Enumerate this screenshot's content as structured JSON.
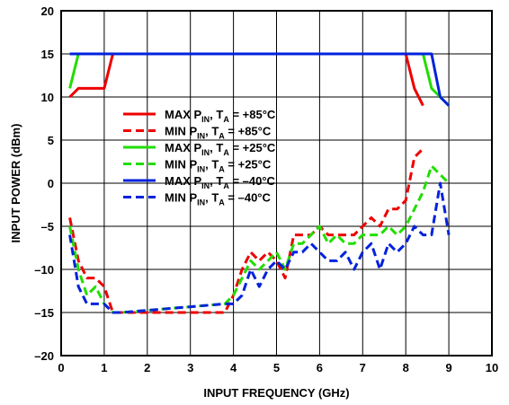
{
  "chart_data": {
    "type": "line",
    "xlabel": "INPUT FREQUENCY (GHz)",
    "ylabel": "INPUT POWER (dBm)",
    "xlim": [
      0,
      10
    ],
    "ylim": [
      -20,
      20
    ],
    "x_ticks": [
      "0",
      "1",
      "2",
      "3",
      "4",
      "5",
      "6",
      "7",
      "8",
      "9",
      "10"
    ],
    "y_ticks": [
      "20",
      "15",
      "10",
      "5",
      "0",
      "–5",
      "–10",
      "–15",
      "–20"
    ],
    "grid": true,
    "legend_position": "center-left",
    "series": [
      {
        "legend": {
          "pre": "MAX P",
          "sub1": "IN",
          "mid": ", T",
          "sub2": "A",
          "post": " = +85°C"
        },
        "color": "#ee0000",
        "dash": "solid",
        "x": [
          0.2,
          0.4,
          1.0,
          1.2,
          8.0,
          8.2,
          8.4
        ],
        "y": [
          10,
          11,
          11,
          15,
          15,
          11,
          9
        ]
      },
      {
        "legend": {
          "pre": "MIN P",
          "sub1": "IN",
          "mid": ", T",
          "sub2": "A",
          "post": " = +85°C"
        },
        "color": "#ee0000",
        "dash": "dashed",
        "x": [
          0.2,
          0.4,
          0.6,
          0.8,
          1.0,
          1.2,
          1.4,
          3.8,
          4.0,
          4.2,
          4.4,
          4.6,
          4.8,
          5.0,
          5.2,
          5.4,
          5.6,
          5.8,
          6.0,
          6.2,
          6.4,
          6.6,
          6.8,
          7.0,
          7.2,
          7.4,
          7.6,
          7.8,
          8.0,
          8.2,
          8.4
        ],
        "y": [
          -4,
          -9,
          -11,
          -11,
          -12,
          -15,
          -15,
          -15,
          -13,
          -10,
          -8,
          -9,
          -8,
          -9,
          -11,
          -6,
          -6,
          -6,
          -5,
          -6,
          -6,
          -6,
          -6,
          -5,
          -4,
          -5,
          -3,
          -3,
          -2,
          3,
          4
        ]
      },
      {
        "legend": {
          "pre": "MAX P",
          "sub1": "IN",
          "mid": ", T",
          "sub2": "A",
          "post": " = +25°C"
        },
        "color": "#22dd00",
        "dash": "solid",
        "x": [
          0.2,
          0.4,
          1.2,
          8.4,
          8.6,
          8.8,
          9.0
        ],
        "y": [
          11,
          15,
          15,
          15,
          11,
          10,
          9
        ]
      },
      {
        "legend": {
          "pre": "MIN P",
          "sub1": "IN",
          "mid": ", T",
          "sub2": "A",
          "post": " = +25°C"
        },
        "color": "#22dd00",
        "dash": "dashed",
        "x": [
          0.2,
          0.4,
          0.6,
          0.8,
          1.0,
          1.2,
          1.4,
          3.8,
          4.0,
          4.2,
          4.4,
          4.6,
          4.8,
          5.0,
          5.2,
          5.4,
          5.6,
          5.8,
          6.0,
          6.2,
          6.4,
          6.6,
          6.8,
          7.0,
          7.2,
          7.4,
          7.6,
          7.8,
          8.0,
          8.2,
          8.4,
          8.6,
          8.8,
          9.0
        ],
        "y": [
          -5,
          -10,
          -13,
          -12,
          -14,
          -15,
          -15,
          -14,
          -13,
          -11,
          -9,
          -10,
          -9,
          -8,
          -10,
          -7,
          -7,
          -6,
          -5,
          -7,
          -6,
          -7,
          -7,
          -6,
          -6,
          -6,
          -5,
          -6,
          -5,
          -3,
          -1,
          2,
          1,
          0
        ]
      },
      {
        "legend": {
          "pre": "MAX P",
          "sub1": "IN",
          "mid": ", T",
          "sub2": "A",
          "post": " = –40°C"
        },
        "color": "#0022dd",
        "dash": "solid",
        "x": [
          0.2,
          0.4,
          8.6,
          8.8,
          9.0
        ],
        "y": [
          15,
          15,
          15,
          10,
          9
        ]
      },
      {
        "legend": {
          "pre": "MIN P",
          "sub1": "IN",
          "mid": ", T",
          "sub2": "A",
          "post": " = –40°C"
        },
        "color": "#0022dd",
        "dash": "dashed",
        "x": [
          0.2,
          0.4,
          0.6,
          0.8,
          1.0,
          1.2,
          1.4,
          3.8,
          4.0,
          4.2,
          4.4,
          4.6,
          4.8,
          5.0,
          5.2,
          5.4,
          5.6,
          5.8,
          6.0,
          6.2,
          6.4,
          6.6,
          6.8,
          7.0,
          7.2,
          7.4,
          7.6,
          7.8,
          8.0,
          8.2,
          8.4,
          8.6,
          8.8,
          9.0
        ],
        "y": [
          -6,
          -12,
          -14,
          -14,
          -14,
          -15,
          -15,
          -14,
          -14,
          -13,
          -10,
          -12,
          -10,
          -9,
          -10,
          -8,
          -8,
          -7,
          -8,
          -9,
          -9,
          -8,
          -10,
          -8,
          -7,
          -10,
          -7,
          -8,
          -7,
          -5,
          -6,
          -6,
          0,
          -6
        ]
      }
    ]
  }
}
